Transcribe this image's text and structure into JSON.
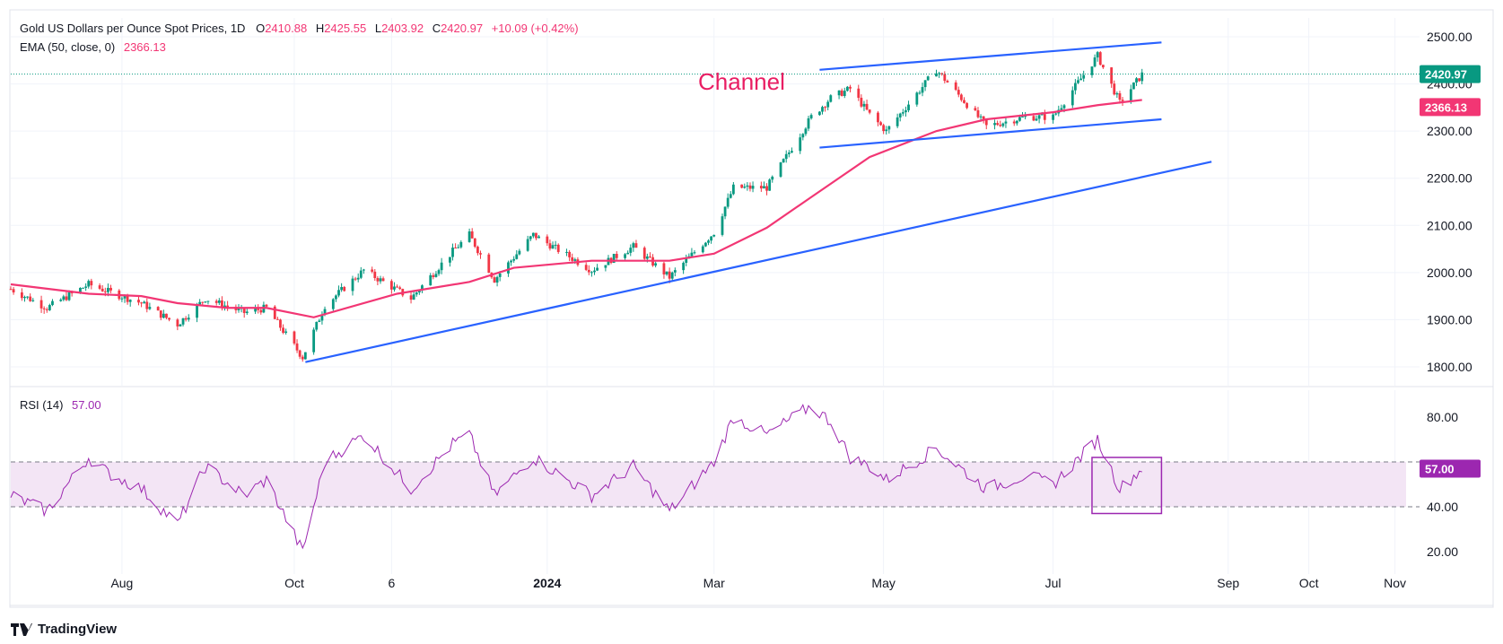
{
  "header": {
    "symbol": "Gold US Dollars per Ounce Spot Prices, 1D",
    "open_label": "O",
    "open": "2410.88",
    "high_label": "H",
    "high": "2425.55",
    "low_label": "L",
    "low": "2403.92",
    "close_label": "C",
    "close": "2420.97",
    "change": "+10.09 (+0.42%)",
    "ema_label": "EMA (50, close, 0)",
    "ema_value": "2366.13",
    "rsi_label": "RSI (14)",
    "rsi_value": "57.00"
  },
  "annotation": "Channel",
  "footer": {
    "brand": "TradingView"
  },
  "colors": {
    "up": "#089981",
    "down": "#f23645",
    "ema": "#f23674",
    "trend": "#2962ff",
    "rsi": "#9c27b0",
    "rsi_band": "#f3e5f5"
  },
  "chart_data": [
    {
      "type": "candlestick",
      "title": "Gold US Dollars per Ounce Spot Prices, 1D",
      "x_ticks": [
        "Aug",
        "Oct",
        "6",
        "2024",
        "Mar",
        "May",
        "Jul",
        "Sep",
        "Oct",
        "Nov"
      ],
      "y_ticks": [
        "1800.00",
        "1900.00",
        "2000.00",
        "2100.00",
        "2200.00",
        "2300.00",
        "2400.00",
        "2500.00"
      ],
      "ylim": [
        1760,
        2540
      ],
      "price_labels": {
        "last": "2420.97",
        "ema": "2366.13"
      },
      "price_path": [
        [
          "2023-06-22",
          1965
        ],
        [
          "2023-07-05",
          1925
        ],
        [
          "2023-07-20",
          1975
        ],
        [
          "2023-07-27",
          1960
        ],
        [
          "2023-08-08",
          1935
        ],
        [
          "2023-08-21",
          1890
        ],
        [
          "2023-08-31",
          1945
        ],
        [
          "2023-09-14",
          1915
        ],
        [
          "2023-09-22",
          1925
        ],
        [
          "2023-10-05",
          1820
        ],
        [
          "2023-10-13",
          1930
        ],
        [
          "2023-10-27",
          2005
        ],
        [
          "2023-11-13",
          1945
        ],
        [
          "2023-11-28",
          2045
        ],
        [
          "2023-12-04",
          2080
        ],
        [
          "2023-12-13",
          1985
        ],
        [
          "2023-12-27",
          2080
        ],
        [
          "2024-01-17",
          2005
        ],
        [
          "2024-02-01",
          2055
        ],
        [
          "2024-02-14",
          1990
        ],
        [
          "2024-03-01",
          2085
        ],
        [
          "2024-03-08",
          2180
        ],
        [
          "2024-03-20",
          2180
        ],
        [
          "2024-04-05",
          2330
        ],
        [
          "2024-04-12",
          2370
        ],
        [
          "2024-04-19",
          2390
        ],
        [
          "2024-04-26",
          2335
        ],
        [
          "2024-05-02",
          2300
        ],
        [
          "2024-05-20",
          2430
        ],
        [
          "2024-06-07",
          2310
        ],
        [
          "2024-06-21",
          2330
        ],
        [
          "2024-07-01",
          2330
        ],
        [
          "2024-07-17",
          2460
        ],
        [
          "2024-07-25",
          2360
        ],
        [
          "2024-08-02",
          2420
        ]
      ],
      "ema_path": [
        [
          "2023-06-22",
          1975
        ],
        [
          "2023-07-20",
          1955
        ],
        [
          "2023-08-08",
          1950
        ],
        [
          "2023-08-21",
          1935
        ],
        [
          "2023-09-08",
          1925
        ],
        [
          "2023-09-22",
          1925
        ],
        [
          "2023-10-09",
          1905
        ],
        [
          "2023-11-08",
          1955
        ],
        [
          "2023-12-04",
          1980
        ],
        [
          "2023-12-20",
          2010
        ],
        [
          "2024-01-17",
          2025
        ],
        [
          "2024-02-14",
          2025
        ],
        [
          "2024-03-01",
          2040
        ],
        [
          "2024-03-20",
          2095
        ],
        [
          "2024-04-05",
          2160
        ],
        [
          "2024-04-26",
          2245
        ],
        [
          "2024-05-20",
          2300
        ],
        [
          "2024-06-07",
          2325
        ],
        [
          "2024-07-01",
          2340
        ],
        [
          "2024-07-17",
          2355
        ],
        [
          "2024-08-02",
          2366
        ]
      ],
      "trend_lines": [
        {
          "from": [
            "2023-10-06",
            1810
          ],
          "to": [
            "2024-08-27",
            2235
          ]
        },
        {
          "from": [
            "2024-04-08",
            2430
          ],
          "to": [
            "2024-08-09",
            2488
          ]
        },
        {
          "from": [
            "2024-04-08",
            2265
          ],
          "to": [
            "2024-08-09",
            2325
          ]
        }
      ]
    },
    {
      "type": "line",
      "title": "RSI (14)",
      "y_ticks": [
        "20.00",
        "40.00",
        "80.00"
      ],
      "ylim": [
        10,
        92
      ],
      "band": [
        40,
        60
      ],
      "last_label": "57.00",
      "rsi_path": [
        [
          "2023-06-22",
          45
        ],
        [
          "2023-07-05",
          38
        ],
        [
          "2023-07-20",
          62
        ],
        [
          "2023-07-27",
          55
        ],
        [
          "2023-08-08",
          48
        ],
        [
          "2023-08-21",
          32
        ],
        [
          "2023-08-31",
          58
        ],
        [
          "2023-09-14",
          45
        ],
        [
          "2023-09-22",
          52
        ],
        [
          "2023-10-05",
          20
        ],
        [
          "2023-10-13",
          60
        ],
        [
          "2023-10-27",
          72
        ],
        [
          "2023-11-13",
          48
        ],
        [
          "2023-11-28",
          68
        ],
        [
          "2023-12-04",
          72
        ],
        [
          "2023-12-13",
          45
        ],
        [
          "2023-12-27",
          62
        ],
        [
          "2024-01-17",
          45
        ],
        [
          "2024-02-01",
          58
        ],
        [
          "2024-02-14",
          38
        ],
        [
          "2024-03-01",
          60
        ],
        [
          "2024-03-08",
          80
        ],
        [
          "2024-03-20",
          72
        ],
        [
          "2024-04-05",
          85
        ],
        [
          "2024-04-12",
          78
        ],
        [
          "2024-04-19",
          62
        ],
        [
          "2024-04-26",
          58
        ],
        [
          "2024-05-02",
          52
        ],
        [
          "2024-05-20",
          66
        ],
        [
          "2024-06-07",
          48
        ],
        [
          "2024-06-21",
          54
        ],
        [
          "2024-07-01",
          50
        ],
        [
          "2024-07-17",
          70
        ],
        [
          "2024-07-25",
          48
        ],
        [
          "2024-08-02",
          57
        ]
      ]
    }
  ]
}
